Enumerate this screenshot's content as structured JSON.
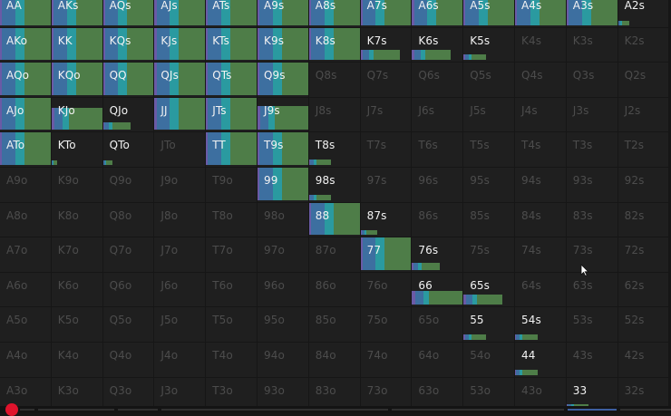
{
  "colors": {
    "background": "#161616",
    "cell": "#1f1f1f",
    "label_active": "#f2f2f2",
    "label_inactive": "#4c4c4c",
    "range_green": "#4e7d48",
    "range_teal": "#2a9aa0",
    "range_blue": "#3d6fa0",
    "range_purple": "#6a5aa6",
    "slider_red": "#e0132c"
  },
  "pointer_icon": "mouse-pointer-icon",
  "grid": {
    "rows": [
      [
        "AA",
        "AKs",
        "AQs",
        "AJs",
        "ATs",
        "A9s",
        "A8s",
        "A7s",
        "A6s",
        "A5s",
        "A4s",
        "A3s",
        "A2s"
      ],
      [
        "AKo",
        "KK",
        "KQs",
        "KJs",
        "KTs",
        "K9s",
        "K8s",
        "K7s",
        "K6s",
        "K5s",
        "K4s",
        "K3s",
        "K2s"
      ],
      [
        "AQo",
        "KQo",
        "QQ",
        "QJs",
        "QTs",
        "Q9s",
        "Q8s",
        "Q7s",
        "Q6s",
        "Q5s",
        "Q4s",
        "Q3s",
        "Q2s"
      ],
      [
        "AJo",
        "KJo",
        "QJo",
        "JJ",
        "JTs",
        "J9s",
        "J8s",
        "J7s",
        "J6s",
        "J5s",
        "J4s",
        "J3s",
        "J2s"
      ],
      [
        "ATo",
        "KTo",
        "QTo",
        "JTo",
        "TT",
        "T9s",
        "T8s",
        "T7s",
        "T6s",
        "T5s",
        "T4s",
        "T3s",
        "T2s"
      ],
      [
        "A9o",
        "K9o",
        "Q9o",
        "J9o",
        "T9o",
        "99",
        "98s",
        "97s",
        "96s",
        "95s",
        "94s",
        "93s",
        "92s"
      ],
      [
        "A8o",
        "K8o",
        "Q8o",
        "J8o",
        "T8o",
        "98o",
        "88",
        "87s",
        "86s",
        "85s",
        "84s",
        "83s",
        "82s"
      ],
      [
        "A7o",
        "K7o",
        "Q7o",
        "J7o",
        "T7o",
        "97o",
        "87o",
        "77",
        "76s",
        "75s",
        "74s",
        "73s",
        "72s"
      ],
      [
        "A6o",
        "K6o",
        "Q6o",
        "J6o",
        "T6o",
        "96o",
        "86o",
        "76o",
        "66",
        "65s",
        "64s",
        "63s",
        "62s"
      ],
      [
        "A5o",
        "K5o",
        "Q5o",
        "J5o",
        "T5o",
        "95o",
        "85o",
        "75o",
        "65o",
        "55",
        "54s",
        "53s",
        "52s"
      ],
      [
        "A4o",
        "K4o",
        "Q4o",
        "J4o",
        "T4o",
        "94o",
        "84o",
        "74o",
        "64o",
        "54o",
        "44",
        "43s",
        "42s"
      ],
      [
        "A3o",
        "K3o",
        "Q3o",
        "J3o",
        "T3o",
        "93o",
        "83o",
        "73o",
        "63o",
        "53o",
        "43o",
        "33",
        "32s"
      ]
    ],
    "frequencies": [
      [
        1.0,
        1.0,
        1.0,
        1.0,
        1.0,
        1.0,
        1.0,
        1.0,
        1.0,
        1.0,
        1.0,
        1.0,
        0.1
      ],
      [
        1.0,
        1.0,
        1.0,
        1.0,
        1.0,
        1.0,
        1.0,
        0.35,
        0.35,
        0.2,
        0,
        0,
        0
      ],
      [
        1.0,
        1.0,
        1.0,
        1.0,
        1.0,
        1.0,
        0,
        0,
        0,
        0,
        0,
        0,
        0
      ],
      [
        1.0,
        0.8,
        0.25,
        1.0,
        1.0,
        0.85,
        0,
        0,
        0,
        0,
        0,
        0,
        0
      ],
      [
        1.0,
        0.05,
        0.08,
        0,
        1.0,
        1.0,
        0.2,
        0,
        0,
        0,
        0,
        0,
        0
      ],
      [
        0,
        0,
        0,
        0,
        0,
        1.0,
        0.2,
        0,
        0,
        0,
        0,
        0,
        0
      ],
      [
        0,
        0,
        0,
        0,
        0,
        0,
        1.0,
        0.15,
        0,
        0,
        0,
        0,
        0
      ],
      [
        0,
        0,
        0,
        0,
        0,
        0,
        0,
        1.0,
        0.25,
        0,
        0,
        0,
        0
      ],
      [
        0,
        0,
        0,
        0,
        0,
        0,
        0,
        0,
        0.5,
        0.35,
        0,
        0,
        0
      ],
      [
        0,
        0,
        0,
        0,
        0,
        0,
        0,
        0,
        0,
        0.2,
        0.2,
        0,
        0
      ],
      [
        0,
        0,
        0,
        0,
        0,
        0,
        0,
        0,
        0,
        0,
        0.2,
        0,
        0
      ],
      [
        0,
        0,
        0,
        0,
        0,
        0,
        0,
        0,
        0,
        0,
        0,
        0.2,
        0
      ]
    ]
  }
}
